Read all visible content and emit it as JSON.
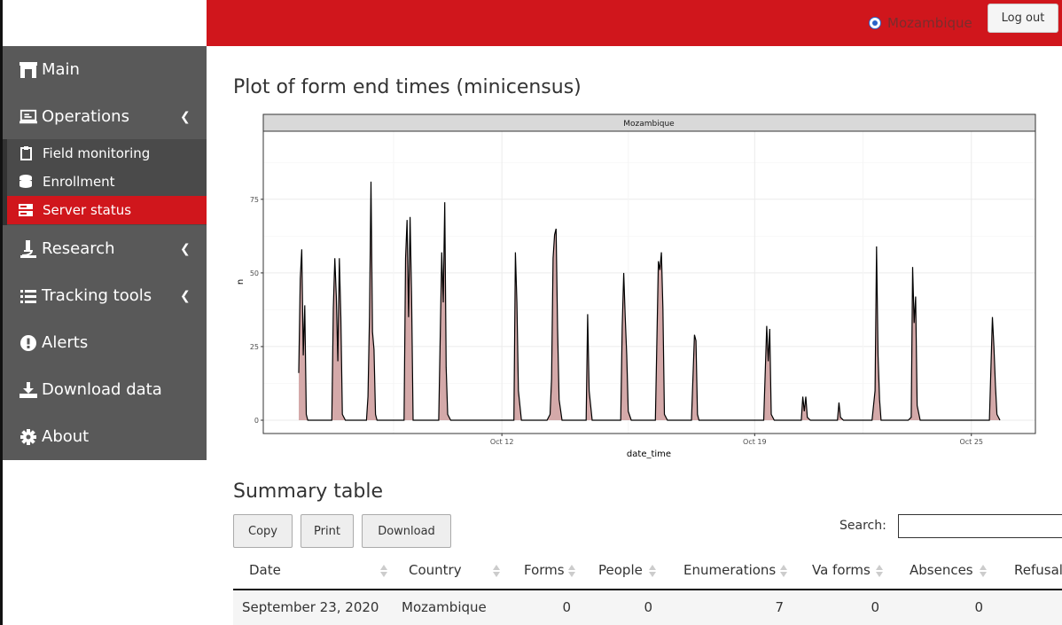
{
  "header": {
    "country_label": "Mozambique",
    "logout_label": "Log out",
    "brand_color": "#d0161c"
  },
  "sidebar": {
    "items": [
      {
        "label": "Main",
        "icon": "bank-icon"
      },
      {
        "label": "Operations",
        "icon": "laptop-icon",
        "expanded": true
      },
      {
        "label": "Research",
        "icon": "microscope-icon"
      },
      {
        "label": "Tracking tools",
        "icon": "list-icon"
      },
      {
        "label": "Alerts",
        "icon": "alert-circle-icon"
      },
      {
        "label": "Download data",
        "icon": "download-icon"
      },
      {
        "label": "About",
        "icon": "gear-icon"
      }
    ],
    "subitems": [
      {
        "label": "Field monitoring",
        "icon": "clipboard-icon"
      },
      {
        "label": "Enrollment",
        "icon": "database-icon"
      },
      {
        "label": "Server status",
        "icon": "server-icon",
        "active": true
      }
    ]
  },
  "main": {
    "plot_title": "Plot of form end times (minicensus)",
    "summary_title": "Summary table",
    "buttons": {
      "copy": "Copy",
      "print": "Print",
      "download": "Download"
    },
    "search_label": "Search:"
  },
  "chart_data": {
    "type": "area",
    "panel_label": "Mozambique",
    "xlabel": "date_time",
    "ylabel": "n",
    "x_ticks": [
      "Oct 12",
      "Oct 19",
      "Oct 25"
    ],
    "y_ticks": [
      0,
      25,
      50,
      75
    ],
    "ylim": [
      0,
      93
    ],
    "xlim": [
      "2020-10-06",
      "2020-10-26"
    ],
    "grid": true,
    "fill_color": "#d4a9a9",
    "line_color": "#000000",
    "series": [
      {
        "x": [
          "2020-10-06T09:00",
          "2020-10-06T10:00",
          "2020-10-06T11:00",
          "2020-10-06T12:00",
          "2020-10-06T13:00",
          "2020-10-06T14:00",
          "2020-10-06T15:00",
          "2020-10-06T16:00",
          "2020-10-06T18:00",
          "2020-10-07T07:00",
          "2020-10-07T08:00",
          "2020-10-07T09:00",
          "2020-10-07T10:00",
          "2020-10-07T11:00",
          "2020-10-07T12:00",
          "2020-10-07T13:00",
          "2020-10-07T14:00",
          "2020-10-07T16:00",
          "2020-10-08T06:00",
          "2020-10-08T07:00",
          "2020-10-08T08:00",
          "2020-10-08T09:00",
          "2020-10-08T10:00",
          "2020-10-08T11:00",
          "2020-10-08T12:00",
          "2020-10-08T13:00",
          "2020-10-08T15:00",
          "2020-10-09T07:00",
          "2020-10-09T08:00",
          "2020-10-09T09:00",
          "2020-10-09T10:00",
          "2020-10-09T11:00",
          "2020-10-09T12:00",
          "2020-10-09T13:00",
          "2020-10-09T15:00",
          "2020-10-10T06:00",
          "2020-10-10T08:00",
          "2020-10-10T09:00",
          "2020-10-10T10:00",
          "2020-10-10T11:00",
          "2020-10-10T12:00",
          "2020-10-10T14:00",
          "2020-10-12T06:00",
          "2020-10-12T08:00",
          "2020-10-12T09:00",
          "2020-10-12T10:00",
          "2020-10-12T11:00",
          "2020-10-12T13:00",
          "2020-10-13T06:00",
          "2020-10-13T08:00",
          "2020-10-13T09:00",
          "2020-10-13T10:00",
          "2020-10-13T11:00",
          "2020-10-13T12:00",
          "2020-10-13T13:00",
          "2020-10-13T14:00",
          "2020-10-13T16:00",
          "2020-10-14T08:00",
          "2020-10-14T09:00",
          "2020-10-14T10:00",
          "2020-10-14T12:00",
          "2020-10-15T07:00",
          "2020-10-15T08:00",
          "2020-10-15T09:00",
          "2020-10-15T10:00",
          "2020-10-15T11:00",
          "2020-10-15T12:00",
          "2020-10-15T14:00",
          "2020-10-16T06:00",
          "2020-10-16T08:00",
          "2020-10-16T09:00",
          "2020-10-16T10:00",
          "2020-10-16T11:00",
          "2020-10-16T12:00",
          "2020-10-16T14:00",
          "2020-10-17T06:00",
          "2020-10-17T08:00",
          "2020-10-17T09:00",
          "2020-10-17T10:00",
          "2020-10-17T11:00",
          "2020-10-17T13:00",
          "2020-10-19T06:00",
          "2020-10-19T08:00",
          "2020-10-19T09:00",
          "2020-10-19T10:00",
          "2020-10-19T11:00",
          "2020-10-19T13:00",
          "2020-10-20T07:00",
          "2020-10-20T08:00",
          "2020-10-20T09:00",
          "2020-10-20T10:00",
          "2020-10-20T11:00",
          "2020-10-20T13:00",
          "2020-10-21T07:00",
          "2020-10-21T08:00",
          "2020-10-21T09:00",
          "2020-10-21T11:00",
          "2020-10-22T06:00",
          "2020-10-22T08:00",
          "2020-10-22T09:00",
          "2020-10-22T10:00",
          "2020-10-22T11:00",
          "2020-10-22T12:00",
          "2020-10-22T14:00",
          "2020-10-23T06:00",
          "2020-10-23T08:00",
          "2020-10-23T09:00",
          "2020-10-23T10:00",
          "2020-10-23T11:00",
          "2020-10-23T12:00",
          "2020-10-23T14:00",
          "2020-10-25T12:00",
          "2020-10-25T14:00",
          "2020-10-25T15:00",
          "2020-10-25T16:00",
          "2020-10-25T17:00",
          "2020-10-25T19:00"
        ],
        "y": [
          16,
          48,
          58,
          22,
          39,
          2,
          0,
          0,
          0,
          0,
          38,
          55,
          42,
          20,
          55,
          35,
          2,
          0,
          0,
          8,
          35,
          81,
          30,
          24,
          2,
          0,
          0,
          0,
          55,
          68,
          35,
          69,
          42,
          0,
          0,
          0,
          57,
          40,
          74,
          18,
          2,
          0,
          0,
          0,
          57,
          40,
          10,
          0,
          0,
          2,
          14,
          55,
          63,
          65,
          31,
          7,
          0,
          0,
          36,
          10,
          0,
          0,
          32,
          50,
          35,
          22,
          3,
          0,
          0,
          54,
          51,
          57,
          38,
          2,
          0,
          0,
          29,
          27,
          2,
          0,
          0,
          0,
          32,
          20,
          31,
          2,
          0,
          0,
          8,
          3,
          8,
          1,
          0,
          0,
          6,
          1,
          0,
          0,
          10,
          59,
          22,
          7,
          0,
          0,
          0,
          1,
          52,
          33,
          42,
          5,
          0,
          0,
          35,
          25,
          12,
          2,
          0
        ]
      }
    ]
  },
  "table": {
    "headers": [
      "Date",
      "Country",
      "Forms",
      "People",
      "Enumerations",
      "Va forms",
      "Absences",
      "Refusals"
    ],
    "rows": [
      [
        "September 23, 2020",
        "Mozambique",
        "0",
        "0",
        "7",
        "0",
        "0",
        ""
      ]
    ]
  }
}
